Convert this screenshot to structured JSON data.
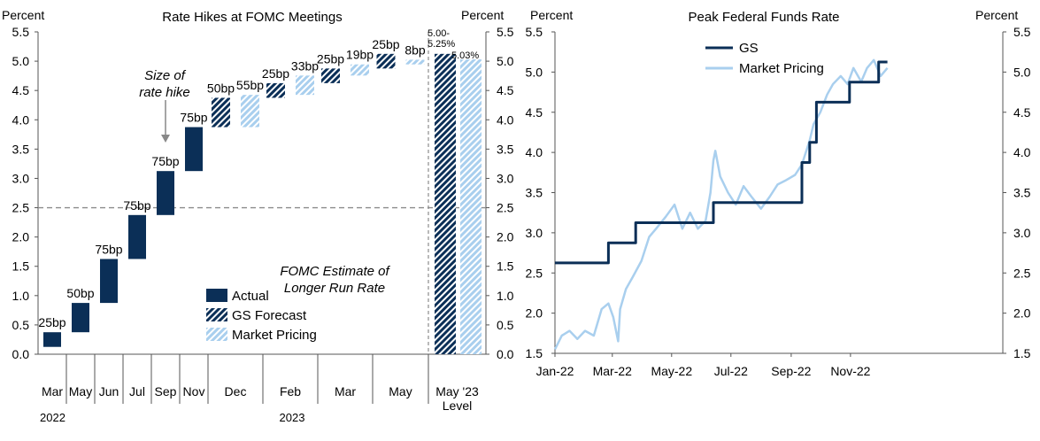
{
  "colors": {
    "actual": "#0b2f57",
    "market": "#a9cfee",
    "grid_dash": "#8c8c8c",
    "axis": "#555555"
  },
  "chart_data": [
    {
      "type": "bar",
      "title": "Rate Hikes at FOMC Meetings",
      "ylabel_left": "Percent",
      "ylabel_right": "Percent",
      "ylim": [
        0,
        5.5
      ],
      "yticks": [
        "0.0",
        "0.5",
        "1.0",
        "1.5",
        "2.0",
        "2.5",
        "3.0",
        "3.5",
        "4.0",
        "4.5",
        "5.0",
        "5.5"
      ],
      "right_yticks": [
        "0.0",
        "0.5",
        "1.0",
        "1.5",
        "2.0",
        "2.5",
        "3.0",
        "3.5",
        "4.0",
        "4.5",
        "5.0",
        "5.5"
      ],
      "bars": [
        {
          "category": "Mar",
          "type": "Actual",
          "base": 0.125,
          "top": 0.375,
          "label": "25bp"
        },
        {
          "category": "May",
          "type": "Actual",
          "base": 0.375,
          "top": 0.875,
          "label": "50bp"
        },
        {
          "category": "Jun",
          "type": "Actual",
          "base": 0.875,
          "top": 1.625,
          "label": "75bp"
        },
        {
          "category": "Jul",
          "type": "Actual",
          "base": 1.625,
          "top": 2.375,
          "label": "75bp"
        },
        {
          "category": "Sep",
          "type": "Actual",
          "base": 2.375,
          "top": 3.125,
          "label": "75bp"
        },
        {
          "category": "Nov",
          "type": "Actual",
          "base": 3.125,
          "top": 3.875,
          "label": "75bp"
        },
        {
          "category": "Dec",
          "type": "GS Forecast",
          "base": 3.875,
          "top": 4.375,
          "label": "50bp"
        },
        {
          "category": "Dec",
          "type": "Market Pricing",
          "base": 3.875,
          "top": 4.425,
          "label": "55bp"
        },
        {
          "category": "Feb",
          "type": "GS Forecast",
          "base": 4.375,
          "top": 4.625,
          "label": "25bp"
        },
        {
          "category": "Feb",
          "type": "Market Pricing",
          "base": 4.425,
          "top": 4.755,
          "label": "33bp"
        },
        {
          "category": "Mar",
          "type": "GS Forecast",
          "base": 4.625,
          "top": 4.875,
          "label": "25bp"
        },
        {
          "category": "Mar",
          "type": "Market Pricing",
          "base": 4.755,
          "top": 4.945,
          "label": "19bp"
        },
        {
          "category": "May",
          "type": "GS Forecast",
          "base": 4.875,
          "top": 5.125,
          "label": "25bp"
        },
        {
          "category": "May",
          "type": "Market Pricing",
          "base": 4.945,
          "top": 5.025,
          "label": "8bp"
        }
      ],
      "level_bars": [
        {
          "type": "GS Forecast",
          "value": 5.125,
          "label": "5.00-\n5.25%"
        },
        {
          "type": "Market Pricing",
          "value": 5.03,
          "label": "5.03%"
        }
      ],
      "x_labels": [
        "Mar",
        "May",
        "Jun",
        "Jul",
        "Sep",
        "Nov",
        "Dec",
        "Feb",
        "Mar",
        "May",
        "May '23\nLevel"
      ],
      "year_labels": [
        "2022",
        "2023"
      ],
      "reference_line": {
        "value": 2.5,
        "label": "FOMC Estimate of\nLonger Run Rate"
      },
      "annotation": "Size of\nrate hike",
      "legend": {
        "placement": "bottom-center",
        "items": [
          "Actual",
          "GS Forecast",
          "Market Pricing"
        ]
      }
    },
    {
      "type": "line",
      "title": "Peak Federal Funds Rate",
      "ylabel_left": "Percent",
      "ylabel_right": "Percent",
      "ylim": [
        1.5,
        5.5
      ],
      "yticks": [
        "1.5",
        "2.0",
        "2.5",
        "3.0",
        "3.5",
        "4.0",
        "4.5",
        "5.0",
        "5.5"
      ],
      "right_yticks": [
        "1.5",
        "2.0",
        "2.5",
        "3.0",
        "3.5",
        "4.0",
        "4.5",
        "5.0",
        "5.5"
      ],
      "xticks": [
        "Jan-22",
        "Mar-22",
        "May-22",
        "Jul-22",
        "Sep-22",
        "Nov-22"
      ],
      "legend": {
        "placement": "top-left"
      },
      "series": [
        {
          "name": "GS",
          "points": [
            [
              "2022-01-01",
              2.625
            ],
            [
              "2022-02-25",
              2.625
            ],
            [
              "2022-02-25",
              2.875
            ],
            [
              "2022-03-25",
              2.875
            ],
            [
              "2022-03-25",
              3.125
            ],
            [
              "2022-06-13",
              3.125
            ],
            [
              "2022-06-13",
              3.375
            ],
            [
              "2022-09-12",
              3.375
            ],
            [
              "2022-09-12",
              3.875
            ],
            [
              "2022-09-20",
              3.875
            ],
            [
              "2022-09-20",
              4.125
            ],
            [
              "2022-09-27",
              4.125
            ],
            [
              "2022-09-27",
              4.625
            ],
            [
              "2022-10-31",
              4.625
            ],
            [
              "2022-10-31",
              4.875
            ],
            [
              "2022-11-30",
              4.875
            ],
            [
              "2022-11-30",
              5.125
            ],
            [
              "2022-12-09",
              5.125
            ]
          ]
        },
        {
          "name": "Market Pricing",
          "points": [
            [
              "2022-01-01",
              1.55
            ],
            [
              "2022-01-08",
              1.72
            ],
            [
              "2022-01-16",
              1.78
            ],
            [
              "2022-01-24",
              1.68
            ],
            [
              "2022-02-01",
              1.78
            ],
            [
              "2022-02-10",
              1.72
            ],
            [
              "2022-02-18",
              2.05
            ],
            [
              "2022-02-25",
              2.12
            ],
            [
              "2022-03-02",
              1.95
            ],
            [
              "2022-03-07",
              1.65
            ],
            [
              "2022-03-09",
              2.05
            ],
            [
              "2022-03-15",
              2.3
            ],
            [
              "2022-03-22",
              2.45
            ],
            [
              "2022-03-31",
              2.65
            ],
            [
              "2022-04-08",
              2.95
            ],
            [
              "2022-04-15",
              3.05
            ],
            [
              "2022-04-25",
              3.2
            ],
            [
              "2022-05-04",
              3.35
            ],
            [
              "2022-05-12",
              3.05
            ],
            [
              "2022-05-20",
              3.25
            ],
            [
              "2022-05-28",
              3.05
            ],
            [
              "2022-06-05",
              3.15
            ],
            [
              "2022-06-10",
              3.5
            ],
            [
              "2022-06-13",
              3.9
            ],
            [
              "2022-06-15",
              4.02
            ],
            [
              "2022-06-20",
              3.7
            ],
            [
              "2022-06-28",
              3.5
            ],
            [
              "2022-07-06",
              3.35
            ],
            [
              "2022-07-14",
              3.58
            ],
            [
              "2022-07-22",
              3.45
            ],
            [
              "2022-08-01",
              3.3
            ],
            [
              "2022-08-10",
              3.45
            ],
            [
              "2022-08-18",
              3.6
            ],
            [
              "2022-08-26",
              3.65
            ],
            [
              "2022-09-05",
              3.72
            ],
            [
              "2022-09-12",
              3.85
            ],
            [
              "2022-09-20",
              4.15
            ],
            [
              "2022-09-24",
              4.35
            ],
            [
              "2022-10-01",
              4.5
            ],
            [
              "2022-10-08",
              4.72
            ],
            [
              "2022-10-14",
              4.85
            ],
            [
              "2022-10-22",
              4.95
            ],
            [
              "2022-10-29",
              4.85
            ],
            [
              "2022-11-04",
              5.05
            ],
            [
              "2022-11-12",
              4.88
            ],
            [
              "2022-11-18",
              5.05
            ],
            [
              "2022-11-25",
              5.15
            ],
            [
              "2022-12-02",
              4.95
            ],
            [
              "2022-12-09",
              5.05
            ]
          ]
        }
      ]
    }
  ]
}
